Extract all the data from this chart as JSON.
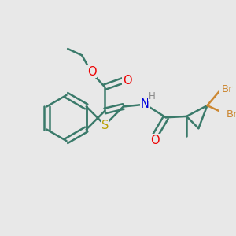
{
  "bg_color": "#e8e8e8",
  "bond_color": "#3a7a6a",
  "bond_width": 1.8,
  "atom_colors": {
    "O": "#ee0000",
    "S": "#b8a000",
    "N": "#0000dd",
    "H": "#888888",
    "Br": "#cc8833",
    "C": "#3a7a6a"
  },
  "font_size": 9.5,
  "fig_size": [
    3.0,
    3.0
  ],
  "dpi": 100,
  "xlim": [
    0,
    10
  ],
  "ylim": [
    0,
    10
  ]
}
